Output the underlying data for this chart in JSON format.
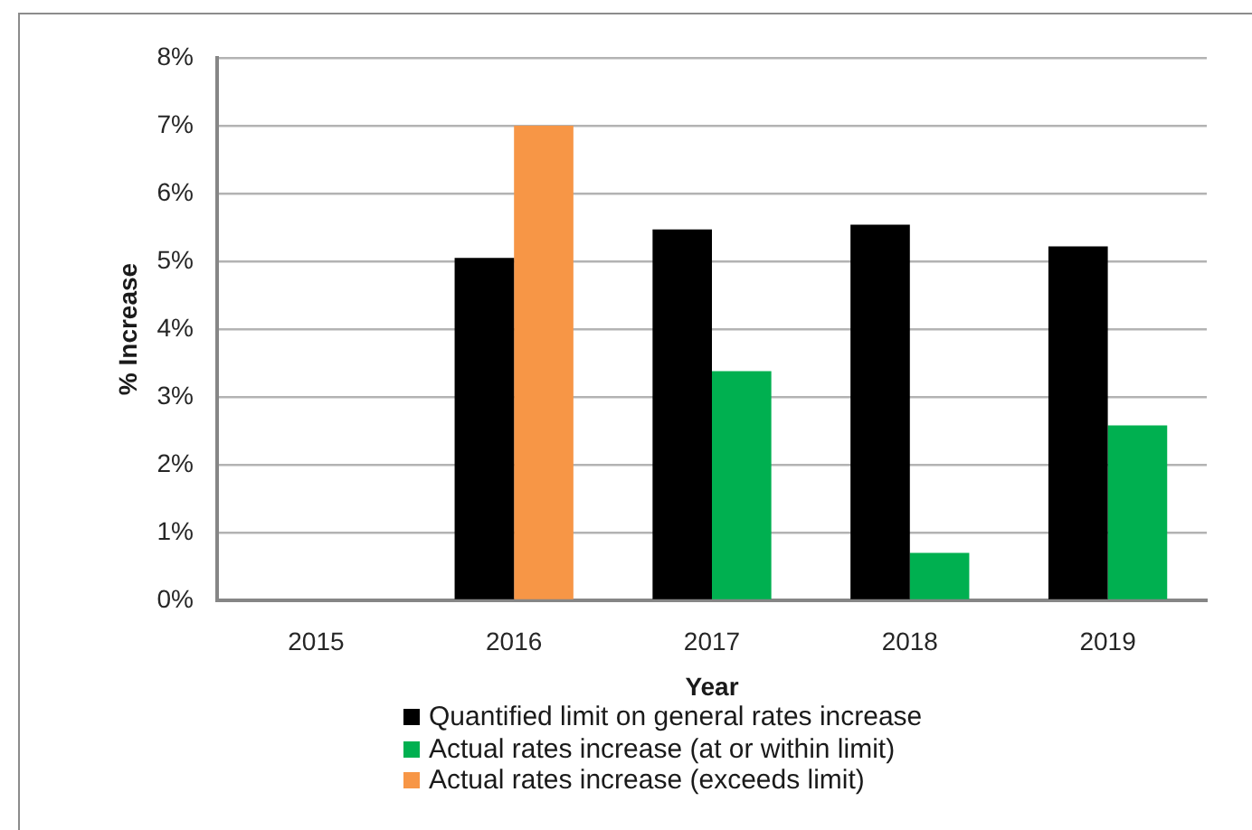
{
  "chart_data": {
    "type": "bar",
    "xlabel": "Year",
    "ylabel": "% Increase",
    "categories": [
      "2015",
      "2016",
      "2017",
      "2018",
      "2019"
    ],
    "series": [
      {
        "name": "Quantified limit on general rates increase",
        "color": "#000000",
        "values": [
          null,
          5.05,
          5.47,
          5.54,
          5.22
        ]
      },
      {
        "name": "Actual rates increase (at or within limit)",
        "color": "#00b050",
        "values": [
          null,
          null,
          3.38,
          0.7,
          2.58
        ]
      },
      {
        "name": "Actual rates increase (exceeds limit)",
        "color": "#f79646",
        "values": [
          null,
          7.0,
          null,
          null,
          null
        ]
      }
    ],
    "ylim": [
      0,
      8
    ],
    "yticks": [
      {
        "value": 0,
        "label": "0%"
      },
      {
        "value": 1,
        "label": "1%"
      },
      {
        "value": 2,
        "label": "2%"
      },
      {
        "value": 3,
        "label": "3%"
      },
      {
        "value": 4,
        "label": "4%"
      },
      {
        "value": 5,
        "label": "5%"
      },
      {
        "value": 6,
        "label": "6%"
      },
      {
        "value": 7,
        "label": "7%"
      },
      {
        "value": 8,
        "label": "8%"
      }
    ],
    "grid": "y",
    "legend": "bottom"
  }
}
